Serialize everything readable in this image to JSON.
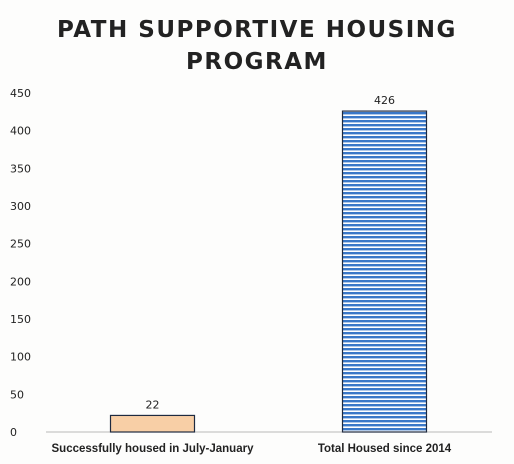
{
  "chart_data": {
    "type": "bar",
    "title": "PATH SUPPORTIVE HOUSING\nPROGRAM",
    "categories": [
      "Successfully housed in July-January",
      "Total Housed since 2014"
    ],
    "values": [
      22,
      426
    ],
    "data_labels": [
      "22",
      "426"
    ],
    "ylim": [
      0,
      450
    ],
    "yticks": [
      0,
      50,
      100,
      150,
      200,
      250,
      300,
      350,
      400,
      450
    ],
    "ytick_labels": [
      "0",
      "50",
      "100",
      "150",
      "200",
      "250",
      "300",
      "350",
      "400",
      "450"
    ],
    "xlabel": "",
    "ylabel": "",
    "grid": false,
    "legend": "none",
    "bar_colors": [
      "#f8cfa6",
      "#3a78c8"
    ],
    "bar_edge_color": "#1e2a40",
    "bar_hatch": [
      "none",
      "horizontal-lines"
    ]
  }
}
